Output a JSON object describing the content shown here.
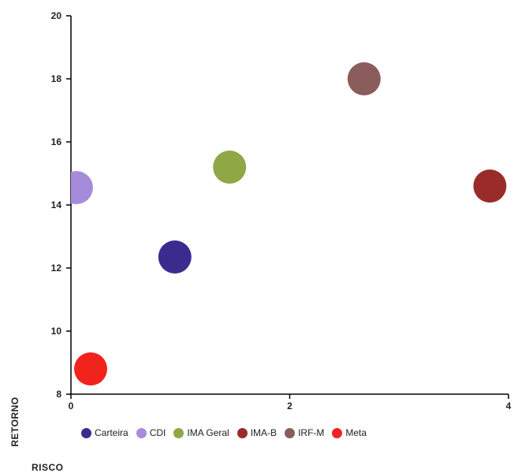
{
  "chart_data": {
    "type": "scatter",
    "title": "",
    "xlabel": "RISCO",
    "ylabel": "RETORNO",
    "xlim": [
      0,
      4
    ],
    "ylim": [
      8,
      20
    ],
    "x_ticks": [
      0,
      2,
      4
    ],
    "y_ticks": [
      8,
      10,
      12,
      14,
      16,
      18,
      20
    ],
    "grid": false,
    "legend_position": "bottom",
    "series": [
      {
        "name": "Carteira",
        "color": "#3b2b8f",
        "points": [
          {
            "x": 0.95,
            "y": 12.35
          }
        ]
      },
      {
        "name": "CDI",
        "color": "#a78bdb",
        "points": [
          {
            "x": 0.05,
            "y": 14.55
          }
        ]
      },
      {
        "name": "IMA Geral",
        "color": "#8fa745",
        "points": [
          {
            "x": 1.45,
            "y": 15.2
          }
        ]
      },
      {
        "name": "IMA-B",
        "color": "#9a2b2b",
        "points": [
          {
            "x": 3.83,
            "y": 14.6
          }
        ]
      },
      {
        "name": "IRF-M",
        "color": "#8a5c5c",
        "points": [
          {
            "x": 2.68,
            "y": 18.0
          }
        ]
      },
      {
        "name": "Meta",
        "color": "#f2231c",
        "points": [
          {
            "x": 0.18,
            "y": 8.8
          }
        ]
      }
    ]
  }
}
